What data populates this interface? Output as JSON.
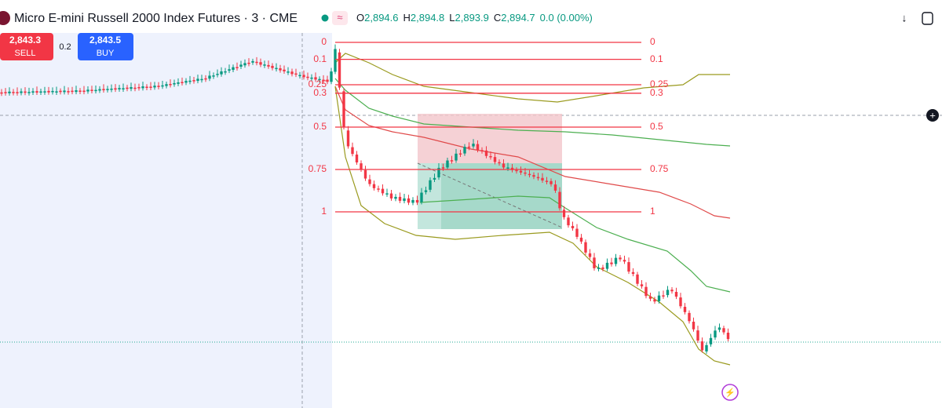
{
  "header": {
    "symbol_title": "Micro E-mini Russell 2000 Index Futures · 3 · CME",
    "ohlc": {
      "open_label": "O",
      "open": "2,894.6",
      "high_label": "H",
      "high": "2,894.8",
      "low_label": "L",
      "low": "2,893.9",
      "close_label": "C",
      "close": "2,894.7",
      "change": "0.0 (0.00%)"
    }
  },
  "trade_buttons": {
    "sell_price": "2,843.3",
    "sell_label": "SELL",
    "spread": "0.2",
    "buy_price": "2,843.5",
    "buy_label": "BUY"
  },
  "fib_levels": [
    0,
    0.1,
    0.25,
    0.3,
    0.5,
    0.75,
    1
  ]
}
